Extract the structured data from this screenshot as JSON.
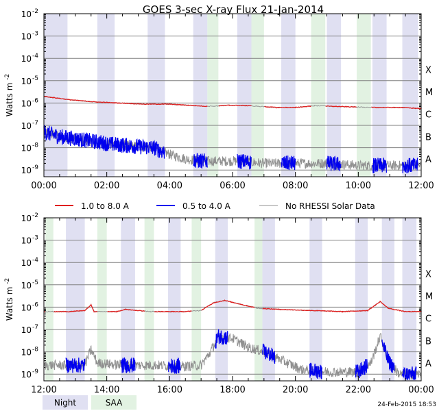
{
  "title": "GOES 3-sec X-ray Flux   21-Jan-2014",
  "ylabel": "Watts m",
  "ylabel_sup": "-2",
  "timestamp": "24-Feb-2015 18:53",
  "y_exponents": [
    -2,
    -3,
    -4,
    -5,
    -6,
    -7,
    -8,
    -9
  ],
  "y_exponent_labels": [
    "-2",
    "-3",
    "-4",
    "-5",
    "-6",
    "-7",
    "-8",
    "-9"
  ],
  "y_tick_base": "10",
  "flare_classes": [
    "X",
    "M",
    "C",
    "B",
    "A"
  ],
  "legend": {
    "long": "1.0 to 8.0 A",
    "short": "0.5 to 4.0 A",
    "rhessi": "No RHESSI Solar Data",
    "night": "Night",
    "saa": "SAA"
  },
  "colors": {
    "long": "#e02020",
    "short": "#0000ee",
    "rhessi": "#909090",
    "night": "#e0e0f2",
    "saa": "#e2f2e2",
    "grid": "#7f7f7f"
  },
  "chart_data": [
    {
      "type": "line",
      "panel": "top",
      "xlim_hours": [
        0,
        12
      ],
      "ylim_log10": [
        -9.3,
        -2
      ],
      "x_tick_labels": [
        "00:00",
        "02:00",
        "04:00",
        "06:00",
        "08:00",
        "10:00",
        "12:00"
      ],
      "night_hours": [
        [
          0.0,
          0.75
        ],
        [
          1.7,
          2.25
        ],
        [
          3.3,
          3.85
        ],
        [
          4.75,
          5.2
        ],
        [
          6.15,
          6.6
        ],
        [
          7.55,
          8.0
        ],
        [
          9.0,
          9.45
        ],
        [
          10.45,
          10.9
        ],
        [
          11.4,
          11.9
        ]
      ],
      "saa_hours": [
        [
          5.2,
          5.55
        ],
        [
          6.6,
          7.0
        ],
        [
          8.5,
          8.95
        ],
        [
          9.95,
          10.4
        ]
      ],
      "series": [
        {
          "name": "1.0 to 8.0 A",
          "points": [
            [
              0,
              -5.7
            ],
            [
              0.8,
              -5.85
            ],
            [
              1.6,
              -5.95
            ],
            [
              2.4,
              -6.0
            ],
            [
              3.2,
              -6.05
            ],
            [
              4.0,
              -6.05
            ],
            [
              4.6,
              -6.1
            ],
            [
              5.2,
              -6.15
            ],
            [
              5.9,
              -6.1
            ],
            [
              6.6,
              -6.12
            ],
            [
              7.4,
              -6.2
            ],
            [
              8.0,
              -6.2
            ],
            [
              8.6,
              -6.12
            ],
            [
              9.2,
              -6.15
            ],
            [
              10.0,
              -6.18
            ],
            [
              10.6,
              -6.2
            ],
            [
              11.4,
              -6.2
            ],
            [
              12.0,
              -6.25
            ]
          ]
        },
        {
          "name": "0.5 to 4.0 A",
          "points": [
            [
              0,
              -7.3
            ],
            [
              0.5,
              -7.5
            ],
            [
              1.0,
              -7.6
            ],
            [
              1.5,
              -7.7
            ],
            [
              2.2,
              -7.85
            ],
            [
              3.0,
              -7.95
            ],
            [
              3.5,
              -8.0
            ],
            [
              4.0,
              -8.3
            ],
            [
              4.5,
              -8.5
            ],
            [
              5.0,
              -8.6
            ],
            [
              5.6,
              -8.6
            ],
            [
              6.2,
              -8.6
            ],
            [
              7.0,
              -8.7
            ],
            [
              8.0,
              -8.7
            ],
            [
              9.0,
              -8.7
            ],
            [
              10.0,
              -8.8
            ],
            [
              11.0,
              -8.8
            ],
            [
              12.0,
              -8.8
            ]
          ]
        }
      ]
    },
    {
      "type": "line",
      "panel": "bottom",
      "xlim_hours": [
        12,
        24
      ],
      "ylim_log10": [
        -9.3,
        -2
      ],
      "x_tick_labels": [
        "12:00",
        "14:00",
        "16:00",
        "18:00",
        "20:00",
        "22:00",
        "00:00"
      ],
      "night_hours": [
        [
          12.7,
          13.3
        ],
        [
          14.45,
          14.9
        ],
        [
          15.95,
          16.35
        ],
        [
          17.45,
          17.85
        ],
        [
          18.95,
          19.35
        ],
        [
          20.45,
          20.85
        ],
        [
          21.9,
          22.3
        ],
        [
          22.75,
          23.15
        ],
        [
          23.4,
          23.85
        ]
      ],
      "saa_hours": [
        [
          12.05,
          12.3
        ],
        [
          13.7,
          14.0
        ],
        [
          15.2,
          15.5
        ],
        [
          16.7,
          17.0
        ],
        [
          18.7,
          18.95
        ]
      ],
      "series": [
        {
          "name": "1.0 to 8.0 A",
          "points": [
            [
              12,
              -6.2
            ],
            [
              12.8,
              -6.2
            ],
            [
              13.3,
              -6.15
            ],
            [
              13.5,
              -5.9
            ],
            [
              13.6,
              -6.2
            ],
            [
              14.3,
              -6.2
            ],
            [
              14.6,
              -6.1
            ],
            [
              15.4,
              -6.2
            ],
            [
              16.5,
              -6.2
            ],
            [
              17.0,
              -6.15
            ],
            [
              17.4,
              -5.8
            ],
            [
              17.75,
              -5.7
            ],
            [
              18.2,
              -5.85
            ],
            [
              18.8,
              -6.05
            ],
            [
              19.5,
              -6.1
            ],
            [
              20.5,
              -6.15
            ],
            [
              21.5,
              -6.2
            ],
            [
              22.3,
              -6.15
            ],
            [
              22.7,
              -5.75
            ],
            [
              22.95,
              -6.05
            ],
            [
              23.5,
              -6.2
            ],
            [
              24.0,
              -6.2
            ]
          ]
        },
        {
          "name": "0.5 to 4.0 A",
          "points": [
            [
              12,
              -8.6
            ],
            [
              12.7,
              -8.6
            ],
            [
              13.3,
              -8.6
            ],
            [
              13.5,
              -7.9
            ],
            [
              13.7,
              -8.5
            ],
            [
              14.5,
              -8.6
            ],
            [
              15.5,
              -8.6
            ],
            [
              16.5,
              -8.65
            ],
            [
              17.0,
              -8.6
            ],
            [
              17.3,
              -8.0
            ],
            [
              17.55,
              -7.3
            ],
            [
              18.0,
              -7.4
            ],
            [
              18.5,
              -7.8
            ],
            [
              19.0,
              -8.0
            ],
            [
              19.6,
              -8.4
            ],
            [
              20.2,
              -8.8
            ],
            [
              21.0,
              -8.9
            ],
            [
              22.0,
              -8.9
            ],
            [
              22.4,
              -8.5
            ],
            [
              22.7,
              -7.3
            ],
            [
              22.95,
              -8.4
            ],
            [
              23.3,
              -9.0
            ],
            [
              24.0,
              -9.0
            ]
          ]
        }
      ]
    }
  ]
}
